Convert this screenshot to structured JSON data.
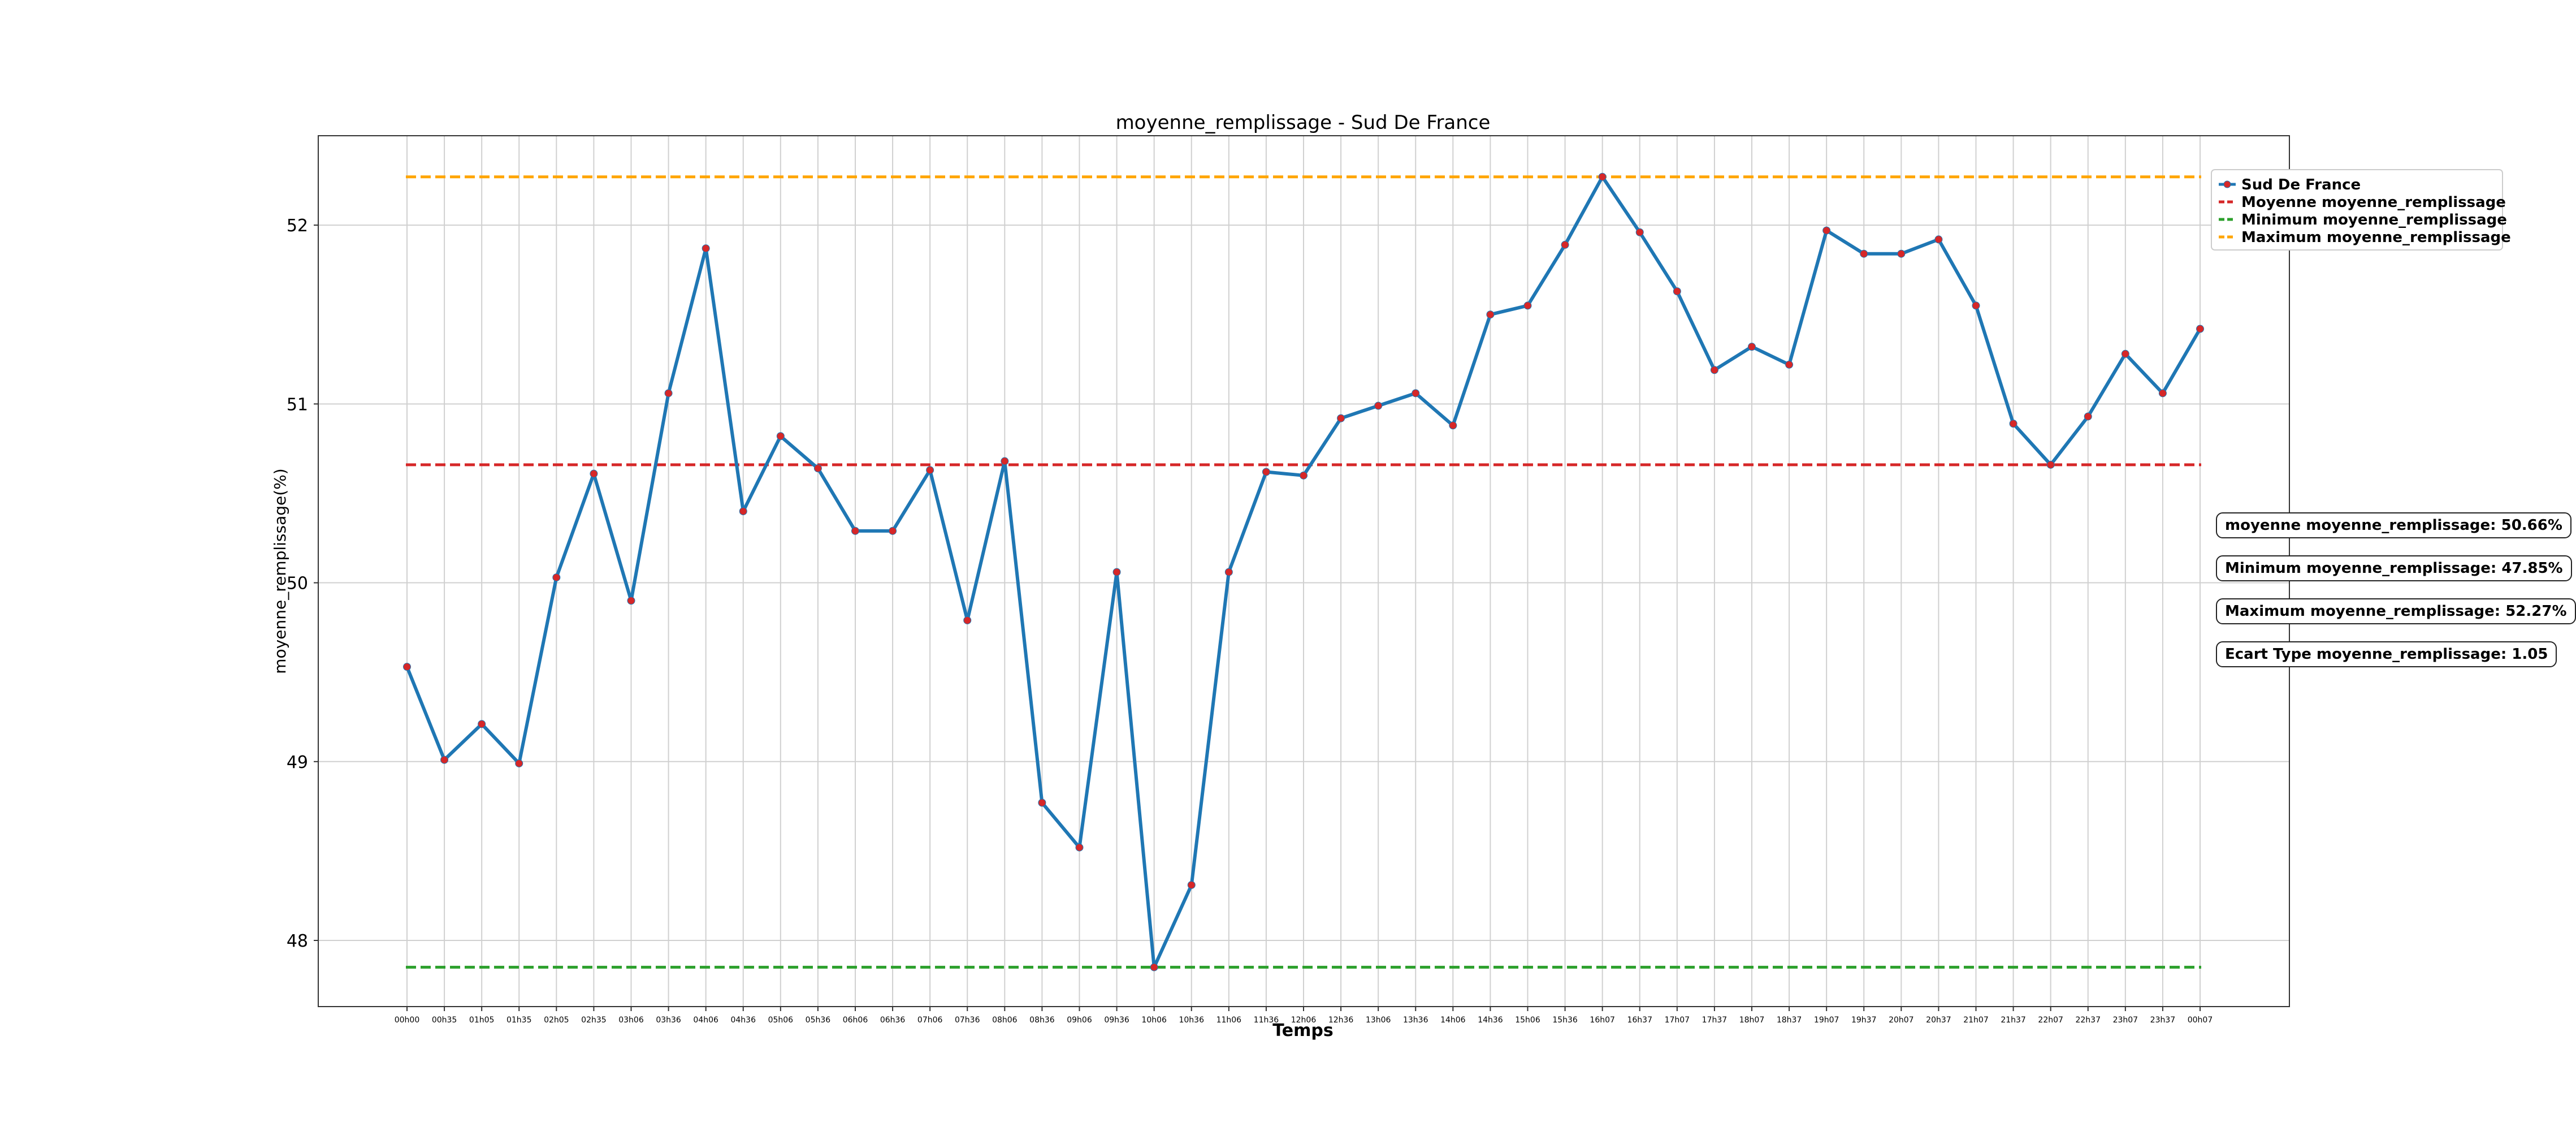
{
  "chart_data": {
    "type": "line",
    "title": "moyenne_remplissage - Sud De France",
    "xlabel": "Temps",
    "ylabel": "moyenne_remplissage(%)",
    "ylim": [
      47.63,
      52.5
    ],
    "yticks": [
      48,
      49,
      50,
      51,
      52
    ],
    "grid": true,
    "legend_position": "top-right, outside plot",
    "categories": [
      "00h00",
      "00h35",
      "01h05",
      "01h35",
      "02h05",
      "02h35",
      "03h06",
      "03h36",
      "04h06",
      "04h36",
      "05h06",
      "05h36",
      "06h06",
      "06h36",
      "07h06",
      "07h36",
      "08h06",
      "08h36",
      "09h06",
      "09h36",
      "10h06",
      "10h36",
      "11h06",
      "11h36",
      "12h06",
      "12h36",
      "13h06",
      "13h36",
      "14h06",
      "14h36",
      "15h06",
      "15h36",
      "16h07",
      "16h37",
      "17h07",
      "17h37",
      "18h07",
      "18h37",
      "19h07",
      "19h37",
      "20h07",
      "20h37",
      "21h07",
      "21h37",
      "22h07",
      "22h37",
      "23h07",
      "23h37",
      "00h07"
    ],
    "series": [
      {
        "name": "Sud De France",
        "color": "#1f77b4",
        "marker_color": "#d62728",
        "values": [
          49.53,
          49.01,
          49.21,
          48.99,
          50.03,
          50.61,
          49.9,
          51.06,
          51.87,
          50.4,
          50.82,
          50.64,
          50.29,
          50.29,
          50.63,
          49.79,
          50.68,
          48.77,
          48.52,
          50.06,
          47.85,
          48.31,
          50.06,
          50.62,
          50.6,
          50.92,
          50.99,
          51.06,
          50.88,
          51.5,
          51.55,
          51.89,
          52.27,
          51.96,
          51.63,
          51.19,
          51.32,
          51.22,
          51.97,
          51.84,
          51.84,
          51.92,
          51.55,
          50.89,
          50.66,
          50.93,
          51.28,
          51.06,
          51.42
        ]
      }
    ],
    "reference_lines": [
      {
        "name": "Moyenne moyenne_remplissage",
        "value": 50.66,
        "color": "#d62728"
      },
      {
        "name": "Minimum moyenne_remplissage",
        "value": 47.85,
        "color": "#2ca02c"
      },
      {
        "name": "Maximum moyenne_remplissage",
        "value": 52.27,
        "color": "#ffa500"
      }
    ],
    "stat_boxes": [
      "moyenne moyenne_remplissage: 50.66%",
      "Minimum moyenne_remplissage: 47.85%",
      "Maximum moyenne_remplissage: 52.27%",
      "Ecart Type moyenne_remplissage: 1.05"
    ]
  }
}
